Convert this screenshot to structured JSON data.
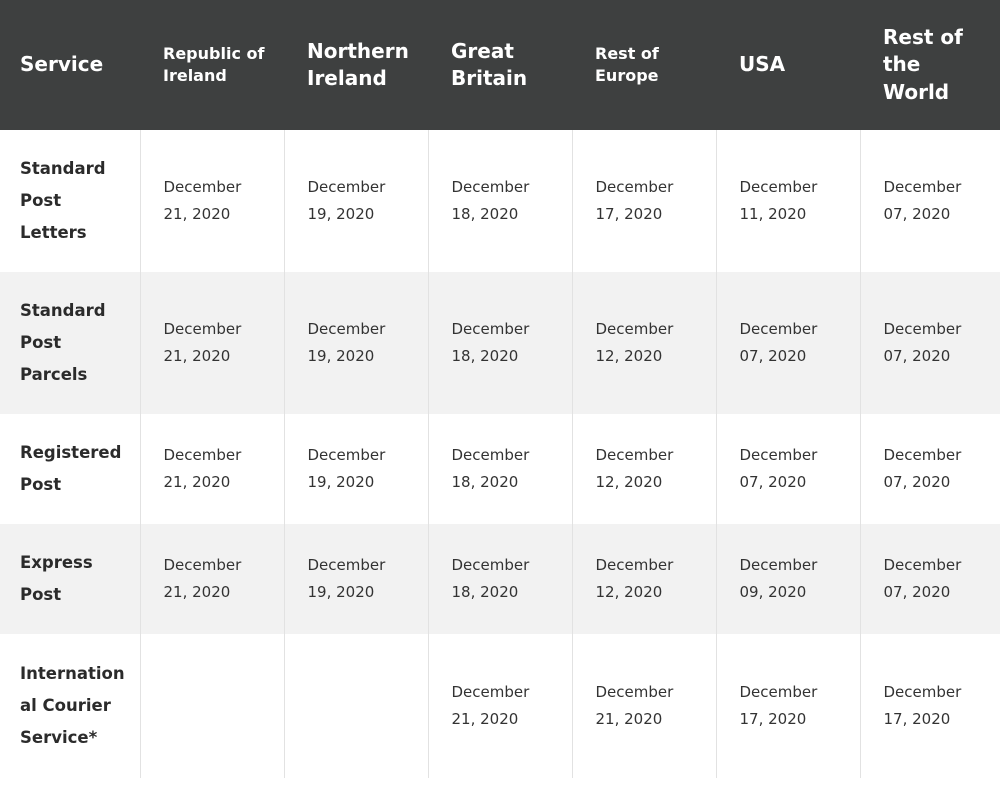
{
  "headers": [
    {
      "label": "Service",
      "size": "lg"
    },
    {
      "label": "Republic of\nIreland",
      "size": "sm"
    },
    {
      "label": "Northern\nIreland",
      "size": "lg"
    },
    {
      "label": "Great\nBritain",
      "size": "lg"
    },
    {
      "label": "Rest of\nEurope",
      "size": "sm"
    },
    {
      "label": "USA",
      "size": "lg"
    },
    {
      "label": "Rest of\nthe\nWorld",
      "size": "lg"
    }
  ],
  "rows": [
    {
      "service": "Standard\nPost\nLetters",
      "height": "tall",
      "alt": false,
      "dates": [
        [
          "December",
          "21, 2020"
        ],
        [
          "December",
          "19, 2020"
        ],
        [
          "December",
          "18, 2020"
        ],
        [
          "December",
          "17, 2020"
        ],
        [
          "December",
          "11, 2020"
        ],
        [
          "December",
          "07, 2020"
        ]
      ]
    },
    {
      "service": "Standard\nPost\nParcels",
      "height": "tall",
      "alt": true,
      "dates": [
        [
          "December",
          "21, 2020"
        ],
        [
          "December",
          "19, 2020"
        ],
        [
          "December",
          "18, 2020"
        ],
        [
          "December",
          "12, 2020"
        ],
        [
          "December",
          "07, 2020"
        ],
        [
          "December",
          "07, 2020"
        ]
      ]
    },
    {
      "service": "Registered\nPost",
      "height": "short",
      "alt": false,
      "dates": [
        [
          "December",
          "21, 2020"
        ],
        [
          "December",
          "19, 2020"
        ],
        [
          "December",
          "18, 2020"
        ],
        [
          "December",
          "12, 2020"
        ],
        [
          "December",
          "07, 2020"
        ],
        [
          "December",
          "07, 2020"
        ]
      ]
    },
    {
      "service": "Express\nPost",
      "height": "short",
      "alt": true,
      "dates": [
        [
          "December",
          "21, 2020"
        ],
        [
          "December",
          "19, 2020"
        ],
        [
          "December",
          "18, 2020"
        ],
        [
          "December",
          "12, 2020"
        ],
        [
          "December",
          "09, 2020"
        ],
        [
          "December",
          "07, 2020"
        ]
      ]
    },
    {
      "service": "Internation\nal Courier\nService*",
      "height": "last",
      "alt": false,
      "dates": [
        null,
        null,
        [
          "December",
          "21, 2020"
        ],
        [
          "December",
          "21, 2020"
        ],
        [
          "December",
          "17, 2020"
        ],
        [
          "December",
          "17, 2020"
        ]
      ]
    }
  ]
}
